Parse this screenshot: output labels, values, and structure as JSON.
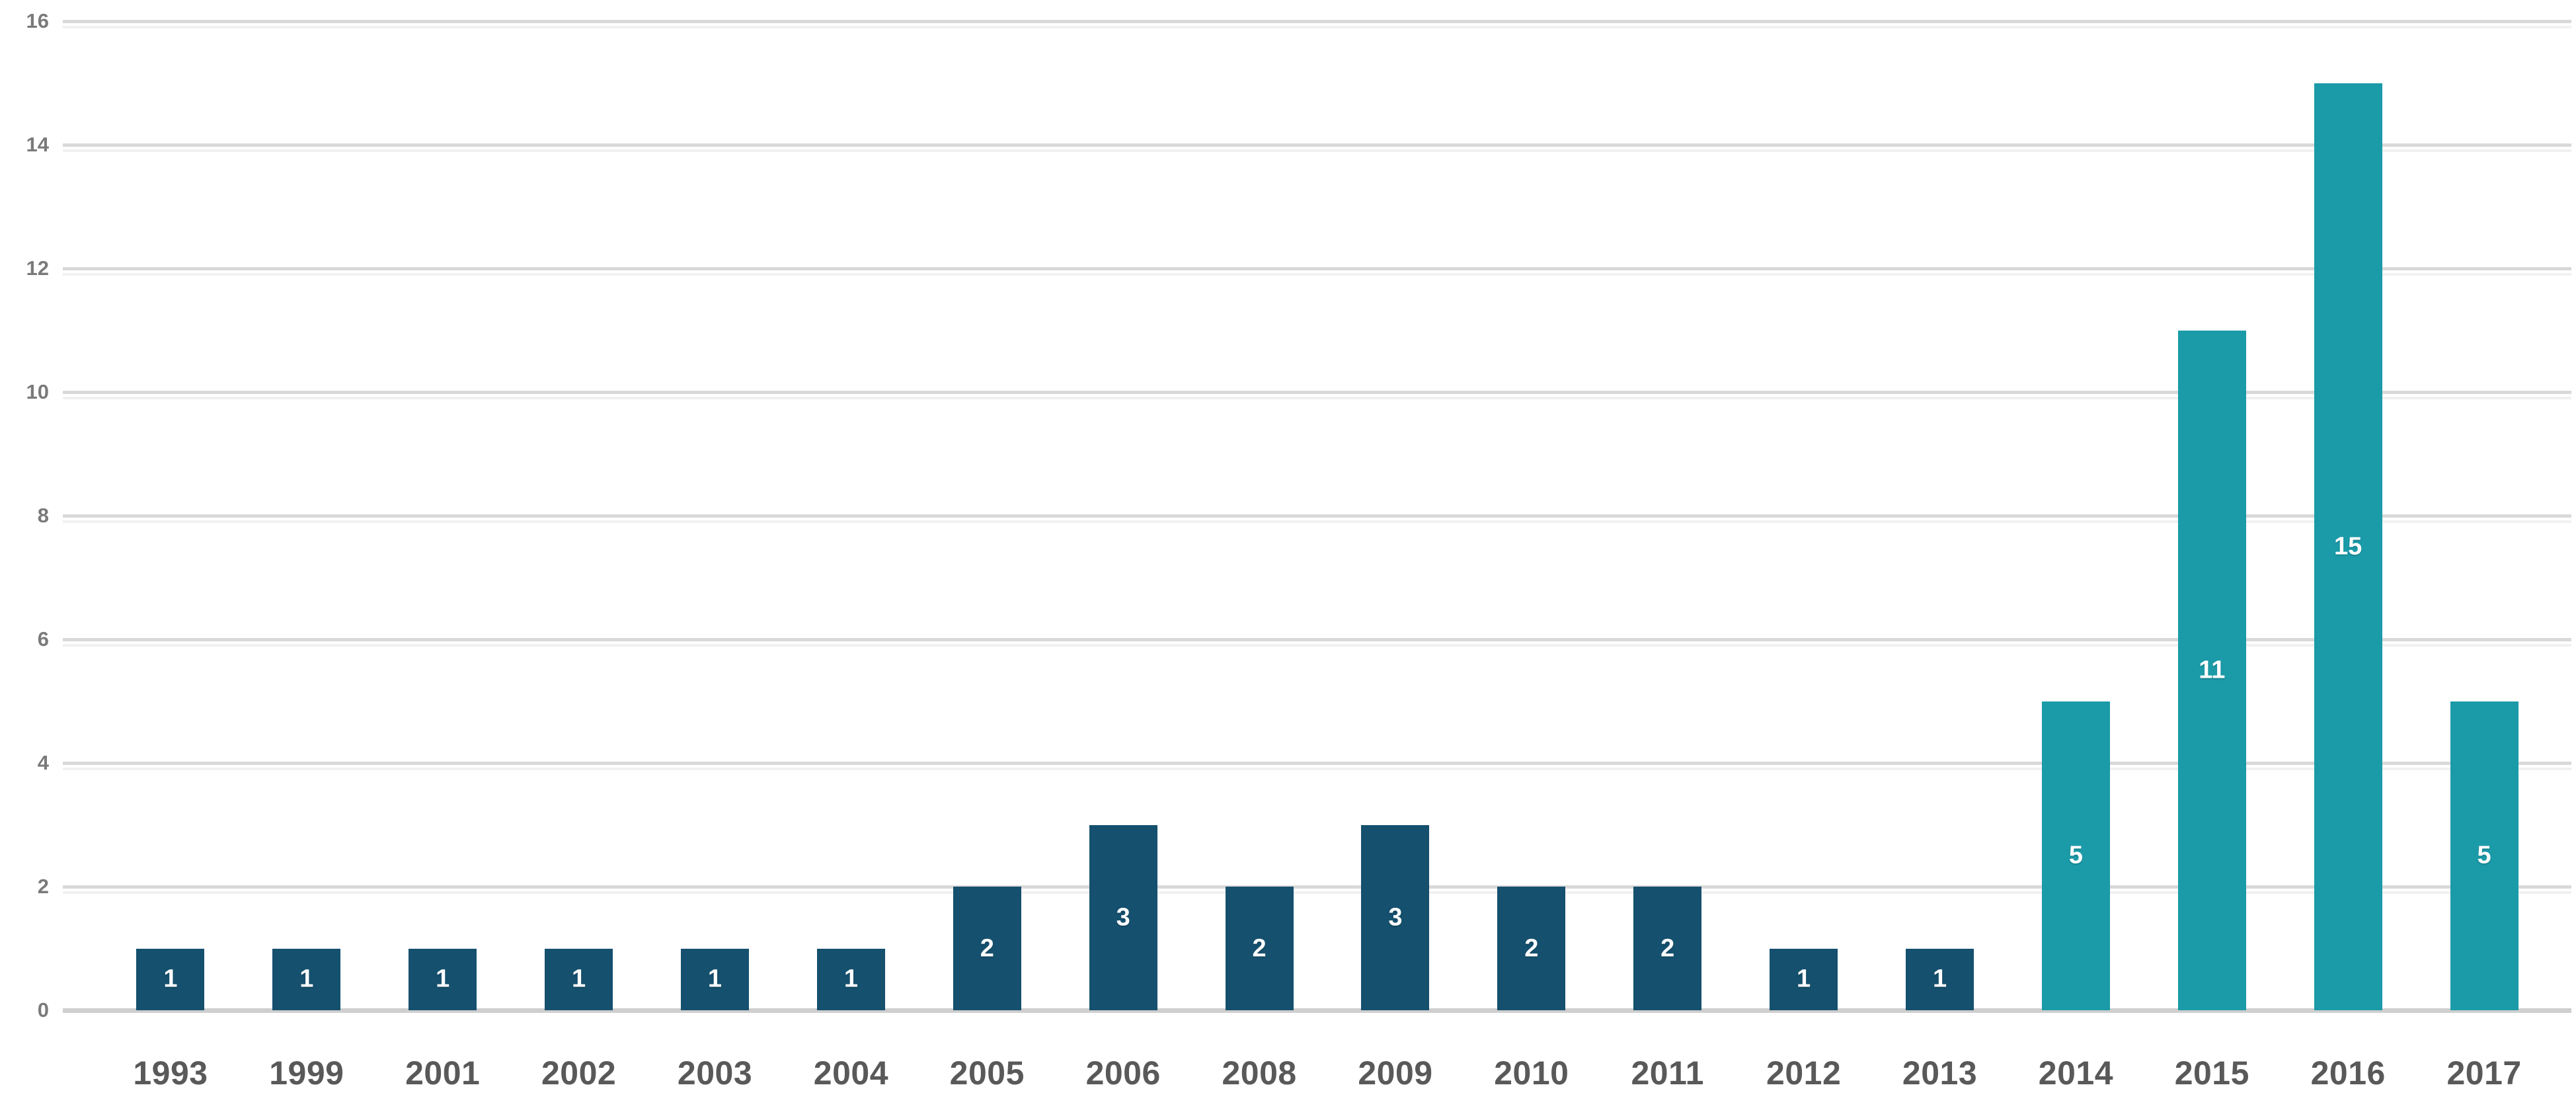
{
  "chart_data": {
    "type": "bar",
    "title": "",
    "xlabel": "",
    "ylabel": "",
    "categories": [
      "1993",
      "1999",
      "2001",
      "2002",
      "2003",
      "2004",
      "2005",
      "2006",
      "2008",
      "2009",
      "2010",
      "2011",
      "2012",
      "2013",
      "2014",
      "2015",
      "2016",
      "2017"
    ],
    "values": [
      1,
      1,
      1,
      1,
      1,
      1,
      2,
      3,
      2,
      3,
      2,
      2,
      1,
      1,
      5,
      11,
      15,
      5
    ],
    "bar_colors": [
      "#15506e",
      "#15506e",
      "#15506e",
      "#15506e",
      "#15506e",
      "#15506e",
      "#15506e",
      "#15506e",
      "#15506e",
      "#15506e",
      "#15506e",
      "#15506e",
      "#15506e",
      "#15506e",
      "#1b9aa8",
      "#1b9aa8",
      "#1b9aa8",
      "#1b9aa8"
    ],
    "data_labels": [
      "1",
      "1",
      "1",
      "1",
      "1",
      "1",
      "2",
      "3",
      "2",
      "3",
      "2",
      "2",
      "1",
      "1",
      "5",
      "11",
      "15",
      "5"
    ],
    "yticks": [
      16,
      14,
      12,
      10,
      8,
      6,
      4,
      2,
      0
    ],
    "ylim": [
      0,
      16
    ],
    "grid": "horizontal-only",
    "legend": "none",
    "colors": {
      "bar_dark": "#15506e",
      "bar_teal": "#1b9aa8",
      "gridline": "#d9d9d9",
      "axis_baseline": "#cfcfcf",
      "y_tick_label": "#7a7a7a",
      "x_tick_label": "#595959",
      "data_label": "#ffffff",
      "background": "#ffffff"
    }
  }
}
